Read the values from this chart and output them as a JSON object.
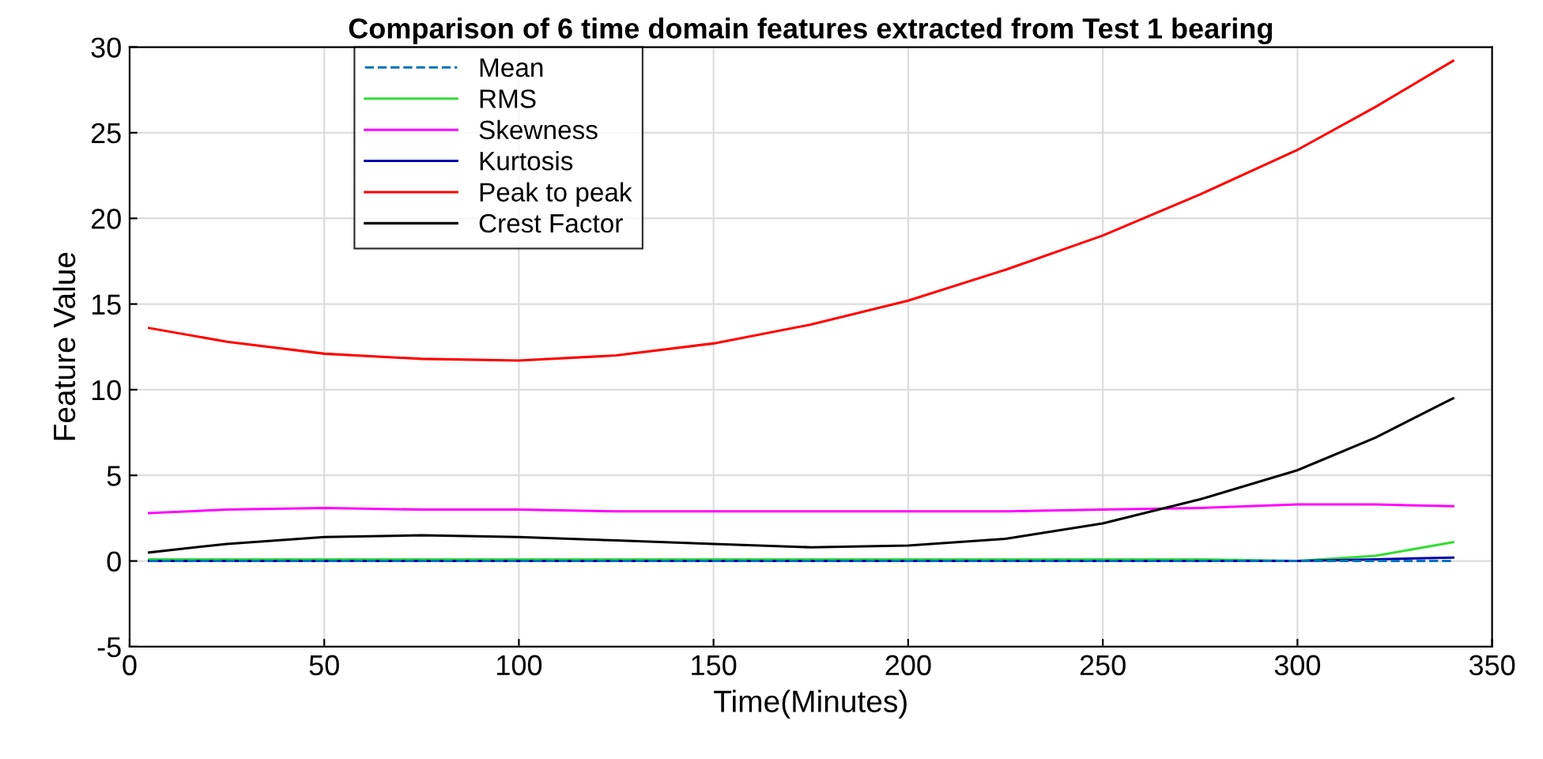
{
  "chart_data": {
    "type": "line",
    "title": "Comparison of 6 time domain features extracted from Test 1 bearing",
    "xlabel": "Time(Minutes)",
    "ylabel": "Feature Value",
    "x": [
      5,
      25,
      50,
      75,
      100,
      125,
      150,
      175,
      200,
      225,
      250,
      275,
      300,
      320,
      340
    ],
    "series": [
      {
        "name": "Mean",
        "color": "#0072bd",
        "line_style": "dashed",
        "values": [
          0,
          0,
          0,
          0,
          0,
          0,
          0,
          0,
          0,
          0,
          0,
          0,
          0,
          0,
          0
        ]
      },
      {
        "name": "RMS",
        "color": "#33dd33",
        "values": [
          0.1,
          0.1,
          0.1,
          0.1,
          0.1,
          0.1,
          0.1,
          0.1,
          0.1,
          0.1,
          0.1,
          0.1,
          0.0,
          0.3,
          1.1
        ]
      },
      {
        "name": "Skewness",
        "color": "#ff00ff",
        "values": [
          2.8,
          3.0,
          3.1,
          3.0,
          3.0,
          2.9,
          2.9,
          2.9,
          2.9,
          2.9,
          3.0,
          3.1,
          3.3,
          3.3,
          3.2
        ]
      },
      {
        "name": "Kurtosis",
        "color": "#0000aa",
        "values": [
          0,
          0,
          0,
          0,
          0,
          0,
          0,
          0,
          0,
          0,
          0,
          0,
          0,
          0.1,
          0.2
        ]
      },
      {
        "name": "Peak to peak",
        "color": "#ff0000",
        "values": [
          13.6,
          12.8,
          12.1,
          11.8,
          11.7,
          12.0,
          12.7,
          13.8,
          15.2,
          17.0,
          19.0,
          21.4,
          24.0,
          26.5,
          29.2
        ]
      },
      {
        "name": "Crest Factor",
        "color": "#000000",
        "values": [
          0.5,
          1.0,
          1.4,
          1.5,
          1.4,
          1.2,
          1.0,
          0.8,
          0.9,
          1.3,
          2.2,
          3.6,
          5.3,
          7.2,
          9.5
        ]
      }
    ],
    "xlim": [
      0,
      350
    ],
    "xticks": [
      0,
      50,
      100,
      150,
      200,
      250,
      300,
      350
    ],
    "ylim": [
      -5,
      30
    ],
    "yticks": [
      -5,
      0,
      5,
      10,
      15,
      20,
      25,
      30
    ],
    "grid": true,
    "legend": "top left",
    "line_style": "solid"
  }
}
